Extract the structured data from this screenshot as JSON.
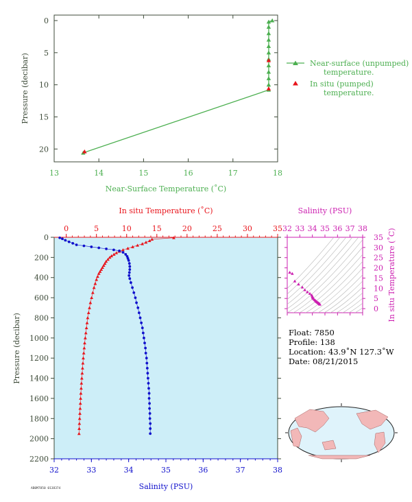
{
  "colors": {
    "green": "#4caf50",
    "red": "#e8141b",
    "blue": "#1010cc",
    "magenta": "#cc1fb0",
    "axis_dark": "#3d4a38",
    "panel_bg": "#cdeef8"
  },
  "chart_data": [
    {
      "type": "line",
      "xlabel": "Near-Surface Temperature (˚C)",
      "ylabel": "Pressure (decibar)",
      "xlim": [
        13,
        18
      ],
      "ylim": [
        0,
        22
      ],
      "y_inverted": true,
      "xticks": [
        "13",
        "14",
        "15",
        "16",
        "17",
        "18"
      ],
      "yticks": [
        "0",
        "5",
        "10",
        "15",
        "20"
      ],
      "legend": [
        "Near-surface (unpumped)\ntemperature.",
        "In situ (pumped)\ntemperature."
      ],
      "series": [
        {
          "name": "Near-surface (unpumped) temperature.",
          "points": [
            [
              17.88,
              0
            ],
            [
              17.8,
              0.2
            ],
            [
              17.8,
              1
            ],
            [
              17.8,
              2
            ],
            [
              17.8,
              3
            ],
            [
              17.8,
              4
            ],
            [
              17.8,
              5
            ],
            [
              17.8,
              6
            ],
            [
              17.8,
              7
            ],
            [
              17.8,
              8
            ],
            [
              17.8,
              9
            ],
            [
              17.8,
              10
            ],
            [
              17.8,
              10.8
            ],
            [
              13.65,
              20.6
            ]
          ]
        },
        {
          "name": "In situ (pumped) temperature.",
          "points": [
            [
              17.8,
              6.2
            ],
            [
              17.8,
              10.6
            ],
            [
              13.68,
              20.4
            ]
          ]
        }
      ]
    },
    {
      "type": "scatter",
      "top_xlabel": "In situ Temperature (˚C)",
      "bottom_xlabel": "Salinity (PSU)",
      "ylabel": "Pressure (decibar)",
      "temp_lim": [
        -2,
        35
      ],
      "sal_lim": [
        32,
        38
      ],
      "ylim": [
        0,
        2200
      ],
      "y_inverted": true,
      "temp_ticks": [
        "0",
        "5",
        "10",
        "15",
        "20",
        "25",
        "30",
        "35"
      ],
      "sal_ticks": [
        "32",
        "33",
        "34",
        "35",
        "36",
        "37",
        "38"
      ],
      "yticks": [
        "0",
        "200",
        "400",
        "600",
        "800",
        "1000",
        "1200",
        "1400",
        "1600",
        "1800",
        "2000",
        "2200"
      ],
      "temperature_profile": [
        [
          17.8,
          5
        ],
        [
          14.2,
          20
        ],
        [
          13.8,
          35
        ],
        [
          13.2,
          50
        ],
        [
          12.6,
          65
        ],
        [
          11.8,
          80
        ],
        [
          11.0,
          95
        ],
        [
          10.2,
          110
        ],
        [
          9.4,
          125
        ],
        [
          8.8,
          140
        ],
        [
          8.3,
          155
        ],
        [
          7.9,
          170
        ],
        [
          7.5,
          185
        ],
        [
          7.2,
          200
        ],
        [
          6.9,
          220
        ],
        [
          6.6,
          240
        ],
        [
          6.4,
          260
        ],
        [
          6.2,
          280
        ],
        [
          6.0,
          300
        ],
        [
          5.8,
          320
        ],
        [
          5.6,
          340
        ],
        [
          5.4,
          360
        ],
        [
          5.2,
          390
        ],
        [
          5.0,
          420
        ],
        [
          4.8,
          460
        ],
        [
          4.6,
          500
        ],
        [
          4.4,
          550
        ],
        [
          4.2,
          600
        ],
        [
          4.0,
          650
        ],
        [
          3.85,
          700
        ],
        [
          3.7,
          750
        ],
        [
          3.55,
          800
        ],
        [
          3.45,
          850
        ],
        [
          3.35,
          900
        ],
        [
          3.25,
          950
        ],
        [
          3.15,
          1000
        ],
        [
          3.05,
          1050
        ],
        [
          2.98,
          1100
        ],
        [
          2.9,
          1150
        ],
        [
          2.82,
          1200
        ],
        [
          2.76,
          1250
        ],
        [
          2.7,
          1300
        ],
        [
          2.64,
          1350
        ],
        [
          2.58,
          1400
        ],
        [
          2.52,
          1450
        ],
        [
          2.47,
          1500
        ],
        [
          2.42,
          1550
        ],
        [
          2.38,
          1600
        ],
        [
          2.34,
          1650
        ],
        [
          2.3,
          1700
        ],
        [
          2.26,
          1750
        ],
        [
          2.22,
          1800
        ],
        [
          2.18,
          1850
        ],
        [
          2.15,
          1900
        ],
        [
          2.12,
          1950
        ]
      ],
      "salinity_profile": [
        [
          32.15,
          5
        ],
        [
          32.22,
          15
        ],
        [
          32.3,
          30
        ],
        [
          32.4,
          45
        ],
        [
          32.5,
          60
        ],
        [
          32.6,
          75
        ],
        [
          32.8,
          85
        ],
        [
          33.0,
          95
        ],
        [
          33.2,
          105
        ],
        [
          33.4,
          115
        ],
        [
          33.6,
          125
        ],
        [
          33.75,
          135
        ],
        [
          33.85,
          150
        ],
        [
          33.92,
          170
        ],
        [
          33.96,
          190
        ],
        [
          33.98,
          210
        ],
        [
          34.0,
          230
        ],
        [
          34.02,
          260
        ],
        [
          34.03,
          290
        ],
        [
          34.03,
          320
        ],
        [
          34.02,
          350
        ],
        [
          34.01,
          380
        ],
        [
          34.03,
          410
        ],
        [
          34.06,
          450
        ],
        [
          34.1,
          500
        ],
        [
          34.14,
          550
        ],
        [
          34.18,
          600
        ],
        [
          34.21,
          650
        ],
        [
          34.25,
          700
        ],
        [
          34.28,
          750
        ],
        [
          34.31,
          800
        ],
        [
          34.34,
          850
        ],
        [
          34.37,
          900
        ],
        [
          34.39,
          950
        ],
        [
          34.41,
          1000
        ],
        [
          34.43,
          1050
        ],
        [
          34.45,
          1100
        ],
        [
          34.46,
          1150
        ],
        [
          34.48,
          1200
        ],
        [
          34.49,
          1250
        ],
        [
          34.5,
          1300
        ],
        [
          34.51,
          1350
        ],
        [
          34.52,
          1400
        ],
        [
          34.53,
          1450
        ],
        [
          34.54,
          1500
        ],
        [
          34.55,
          1550
        ],
        [
          34.55,
          1600
        ],
        [
          34.56,
          1650
        ],
        [
          34.56,
          1700
        ],
        [
          34.57,
          1750
        ],
        [
          34.57,
          1800
        ],
        [
          34.58,
          1850
        ],
        [
          34.58,
          1900
        ],
        [
          34.58,
          1950
        ]
      ]
    },
    {
      "type": "scatter",
      "top_xlabel": "Salinity (PSU)",
      "right_ylabel": "In situ Temperature (˚C)",
      "sal_lim": [
        32,
        38
      ],
      "temp_lim": [
        -2,
        35
      ],
      "sal_ticks": [
        "32",
        "33",
        "34",
        "35",
        "36",
        "37",
        "38"
      ],
      "temp_ticks": [
        "0",
        "5",
        "10",
        "15",
        "20",
        "25",
        "30",
        "35"
      ],
      "ts_points": [
        [
          32.2,
          17.8
        ],
        [
          32.4,
          17.2
        ],
        [
          32.6,
          13.5
        ],
        [
          32.9,
          12.0
        ],
        [
          33.2,
          10.5
        ],
        [
          33.4,
          9.2
        ],
        [
          33.6,
          8.2
        ],
        [
          33.8,
          7.4
        ],
        [
          33.95,
          6.6
        ],
        [
          34.0,
          6.0
        ],
        [
          34.02,
          5.6
        ],
        [
          34.04,
          5.2
        ],
        [
          34.1,
          4.8
        ],
        [
          34.18,
          4.3
        ],
        [
          34.25,
          3.9
        ],
        [
          34.3,
          3.6
        ],
        [
          34.35,
          3.35
        ],
        [
          34.4,
          3.1
        ],
        [
          34.45,
          2.9
        ],
        [
          34.5,
          2.7
        ],
        [
          34.53,
          2.5
        ],
        [
          34.56,
          2.35
        ],
        [
          34.58,
          2.2
        ],
        [
          34.6,
          2.1
        ]
      ]
    }
  ],
  "float_info": {
    "float": "Float:  7850",
    "profile": "Profile:  138",
    "location": "Location:  43.9˚N  127.3˚W",
    "date": "Date:  08/21/2015"
  },
  "map_label": "world-map",
  "footer": "AB0M7850 0138374"
}
